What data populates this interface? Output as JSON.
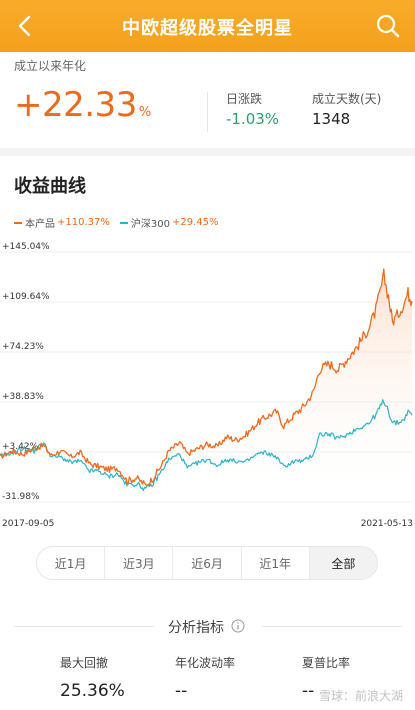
{
  "header": {
    "title": "中欧超级股票全明星"
  },
  "summary": {
    "annual_label": "成立以来年化",
    "annual_value": "+22.33",
    "annual_pct": "%",
    "daily_label": "日涨跌",
    "daily_value": "-1.03%",
    "days_label": "成立天数(天)",
    "days_value": "1348"
  },
  "chart_section": {
    "title": "收益曲线",
    "legend": [
      {
        "name": "本产品",
        "value": "+110.37%",
        "color": "#ec6a1c"
      },
      {
        "name": "沪深300",
        "value": "+29.45%",
        "color": "#2bb3c9"
      }
    ]
  },
  "chart_data": {
    "type": "line",
    "yticks": [
      "+145.04%",
      "+109.64%",
      "+74.23%",
      "+38.83%",
      "+3.42%",
      "-31.98%"
    ],
    "ylim": [
      -31.98,
      145.04
    ],
    "x_start_label": "2017-09-05",
    "x_end_label": "2021-05-13",
    "x_range": [
      "2017-09-05",
      "2021-05-13"
    ],
    "series": [
      {
        "name": "本产品",
        "color": "#ec6a1c",
        "points": [
          [
            "2017-09-05",
            0
          ],
          [
            "2017-10-15",
            4
          ],
          [
            "2017-11-20",
            2
          ],
          [
            "2017-12-25",
            6
          ],
          [
            "2018-01-25",
            8
          ],
          [
            "2018-02-20",
            1
          ],
          [
            "2018-03-20",
            4
          ],
          [
            "2018-04-25",
            0
          ],
          [
            "2018-05-25",
            3
          ],
          [
            "2018-06-25",
            -5
          ],
          [
            "2018-07-25",
            -7
          ],
          [
            "2018-08-25",
            -9
          ],
          [
            "2018-09-25",
            -8
          ],
          [
            "2018-10-25",
            -17
          ],
          [
            "2018-11-25",
            -15
          ],
          [
            "2018-12-25",
            -20
          ],
          [
            "2019-01-15",
            -16
          ],
          [
            "2019-02-15",
            -6
          ],
          [
            "2019-03-10",
            4
          ],
          [
            "2019-04-15",
            10
          ],
          [
            "2019-05-10",
            2
          ],
          [
            "2019-06-15",
            6
          ],
          [
            "2019-07-15",
            9
          ],
          [
            "2019-08-15",
            7
          ],
          [
            "2019-09-15",
            14
          ],
          [
            "2019-10-15",
            12
          ],
          [
            "2019-11-15",
            15
          ],
          [
            "2019-12-25",
            24
          ],
          [
            "2020-01-20",
            28
          ],
          [
            "2020-02-25",
            32
          ],
          [
            "2020-03-20",
            22
          ],
          [
            "2020-04-25",
            30
          ],
          [
            "2020-05-25",
            36
          ],
          [
            "2020-06-25",
            46
          ],
          [
            "2020-07-15",
            62
          ],
          [
            "2020-08-15",
            66
          ],
          [
            "2020-09-15",
            62
          ],
          [
            "2020-10-15",
            70
          ],
          [
            "2020-11-15",
            78
          ],
          [
            "2020-12-25",
            92
          ],
          [
            "2021-01-15",
            104
          ],
          [
            "2021-02-10",
            128
          ],
          [
            "2021-02-25",
            114
          ],
          [
            "2021-03-10",
            96
          ],
          [
            "2021-03-25",
            100
          ],
          [
            "2021-04-15",
            108
          ],
          [
            "2021-04-30",
            116
          ],
          [
            "2021-05-13",
            110.37
          ]
        ]
      },
      {
        "name": "沪深300",
        "color": "#2bb3c9",
        "points": [
          [
            "2017-09-05",
            0
          ],
          [
            "2017-10-15",
            3
          ],
          [
            "2017-11-20",
            6
          ],
          [
            "2017-12-25",
            4
          ],
          [
            "2018-01-25",
            10
          ],
          [
            "2018-02-20",
            0
          ],
          [
            "2018-03-20",
            0
          ],
          [
            "2018-04-25",
            -4
          ],
          [
            "2018-05-25",
            -3
          ],
          [
            "2018-06-25",
            -10
          ],
          [
            "2018-07-25",
            -10
          ],
          [
            "2018-08-25",
            -14
          ],
          [
            "2018-09-25",
            -12
          ],
          [
            "2018-10-25",
            -20
          ],
          [
            "2018-11-25",
            -19
          ],
          [
            "2018-12-25",
            -23
          ],
          [
            "2019-01-15",
            -20
          ],
          [
            "2019-02-15",
            -10
          ],
          [
            "2019-03-10",
            -2
          ],
          [
            "2019-04-15",
            2
          ],
          [
            "2019-05-10",
            -8
          ],
          [
            "2019-06-15",
            -4
          ],
          [
            "2019-07-15",
            -2
          ],
          [
            "2019-08-15",
            -6
          ],
          [
            "2019-09-15",
            -2
          ],
          [
            "2019-10-15",
            -3
          ],
          [
            "2019-11-15",
            -4
          ],
          [
            "2019-12-25",
            2
          ],
          [
            "2020-01-20",
            3
          ],
          [
            "2020-02-25",
            0
          ],
          [
            "2020-03-20",
            -7
          ],
          [
            "2020-04-25",
            -3
          ],
          [
            "2020-05-25",
            -3
          ],
          [
            "2020-06-25",
            2
          ],
          [
            "2020-07-15",
            16
          ],
          [
            "2020-08-15",
            16
          ],
          [
            "2020-09-15",
            13
          ],
          [
            "2020-10-15",
            16
          ],
          [
            "2020-11-15",
            20
          ],
          [
            "2020-12-25",
            24
          ],
          [
            "2021-01-15",
            30
          ],
          [
            "2021-02-10",
            40
          ],
          [
            "2021-02-25",
            33
          ],
          [
            "2021-03-10",
            24
          ],
          [
            "2021-03-25",
            24
          ],
          [
            "2021-04-15",
            26
          ],
          [
            "2021-04-30",
            32
          ],
          [
            "2021-05-13",
            29.45
          ]
        ]
      }
    ],
    "grid": true
  },
  "range_tabs": [
    "近1月",
    "近3月",
    "近6月",
    "近1年",
    "全部"
  ],
  "range_active_index": 4,
  "analysis": {
    "title": "分析指标",
    "metrics": [
      {
        "label": "最大回撤",
        "value": "25.36%"
      },
      {
        "label": "年化波动率",
        "value": "--"
      },
      {
        "label": "夏普比率",
        "value": "--"
      }
    ]
  },
  "watermark": "雪球：前浪大湖"
}
